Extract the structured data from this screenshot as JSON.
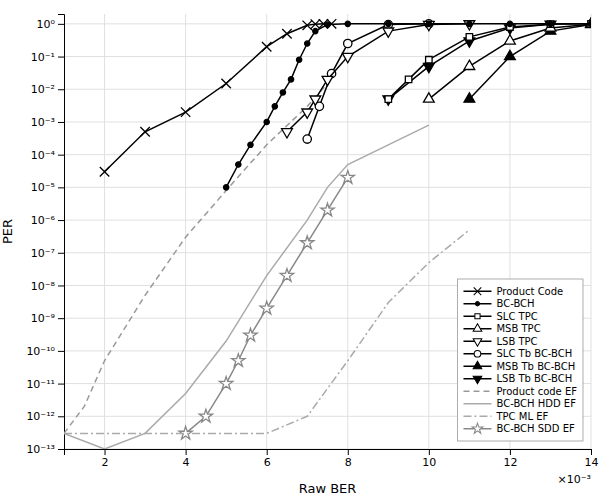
{
  "chart_data": {
    "type": "line",
    "xlabel": "Raw BER",
    "ylabel": "PER",
    "annotations": [
      "×10⁻³"
    ],
    "log": "y",
    "grid": true,
    "legend": "lower right",
    "xlim": [
      0.001,
      0.014
    ],
    "xticks": [
      {
        "value": 0.002,
        "label": "2"
      },
      {
        "value": 0.004,
        "label": "4"
      },
      {
        "value": 0.006,
        "label": "6"
      },
      {
        "value": 0.008,
        "label": "8"
      },
      {
        "value": 0.01,
        "label": "10"
      },
      {
        "value": 0.012,
        "label": "12"
      },
      {
        "value": 0.014,
        "label": "14"
      }
    ],
    "ylim": [
      1e-13,
      2.0
    ],
    "yticks": [
      {
        "value": 1e-13,
        "label": "10⁻¹³"
      },
      {
        "value": 1e-12,
        "label": "10⁻¹²"
      },
      {
        "value": 1e-11,
        "label": "10⁻¹¹"
      },
      {
        "value": 1e-10,
        "label": "10⁻¹⁰"
      },
      {
        "value": 1e-09,
        "label": "10⁻⁹"
      },
      {
        "value": 1e-08,
        "label": "10⁻⁸"
      },
      {
        "value": 1e-07,
        "label": "10⁻⁷"
      },
      {
        "value": 1e-06,
        "label": "10⁻⁶"
      },
      {
        "value": 1e-05,
        "label": "10⁻⁵"
      },
      {
        "value": 0.0001,
        "label": "10⁻⁴"
      },
      {
        "value": 0.001,
        "label": "10⁻³"
      },
      {
        "value": 0.01,
        "label": "10⁻²"
      },
      {
        "value": 0.1,
        "label": "10⁻¹"
      },
      {
        "value": 1,
        "label": "10⁰"
      }
    ],
    "series": [
      {
        "name": "Product Code",
        "color": "black",
        "marker": "x",
        "line_style": "solid",
        "x": [
          0.002,
          0.003,
          0.004,
          0.005,
          0.006,
          0.0065,
          0.007,
          0.0072,
          0.0074,
          0.0076
        ],
        "values": [
          3e-05,
          0.0005,
          0.002,
          0.015,
          0.2,
          0.5,
          0.9,
          0.98,
          1.0,
          1.0
        ]
      },
      {
        "name": "BC-BCH",
        "color": "black",
        "marker": "point",
        "line_style": "solid",
        "x": [
          0.005,
          0.0053,
          0.0056,
          0.006,
          0.0062,
          0.0064,
          0.0066,
          0.0068,
          0.007,
          0.0072,
          0.0075,
          0.008,
          0.009,
          0.01,
          0.011,
          0.012,
          0.013,
          0.014
        ],
        "values": [
          1e-05,
          5e-05,
          0.0002,
          0.001,
          0.003,
          0.008,
          0.02,
          0.08,
          0.25,
          0.6,
          0.95,
          1.0,
          1.0,
          1.0,
          1.0,
          1.0,
          1.0,
          1.0
        ]
      },
      {
        "name": "SLC TPC",
        "color": "black",
        "marker": "square-open",
        "line_style": "solid",
        "x": [
          0.009,
          0.0095,
          0.01,
          0.011,
          0.012,
          0.013,
          0.014
        ],
        "values": [
          0.005,
          0.02,
          0.08,
          0.4,
          0.8,
          0.98,
          1.0
        ]
      },
      {
        "name": "MSB TPC",
        "color": "black",
        "marker": "triangle-up-open",
        "line_style": "solid",
        "x": [
          0.01,
          0.011,
          0.012,
          0.013,
          0.014
        ],
        "values": [
          0.005,
          0.05,
          0.3,
          0.75,
          0.98
        ]
      },
      {
        "name": "LSB TPC",
        "color": "black",
        "marker": "triangle-down-open",
        "line_style": "solid",
        "x": [
          0.0065,
          0.007,
          0.0072,
          0.0075,
          0.008,
          0.009,
          0.01,
          0.011
        ],
        "values": [
          0.0005,
          0.002,
          0.005,
          0.02,
          0.1,
          0.6,
          0.95,
          1.0
        ]
      },
      {
        "name": "SLC Tb BC-BCH",
        "color": "black",
        "marker": "circle-open",
        "line_style": "solid",
        "x": [
          0.007,
          0.0073,
          0.0076,
          0.008,
          0.009,
          0.01
        ],
        "values": [
          0.0003,
          0.003,
          0.03,
          0.25,
          0.95,
          1.0
        ]
      },
      {
        "name": "MSB Tb BC-BCH",
        "color": "black",
        "marker": "triangle-up",
        "line_style": "solid",
        "x": [
          0.011,
          0.012,
          0.013,
          0.014
        ],
        "values": [
          0.005,
          0.1,
          0.6,
          0.95
        ]
      },
      {
        "name": "LSB Tb BC-BCH",
        "color": "black",
        "marker": "triangle-down",
        "line_style": "solid",
        "x": [
          0.009,
          0.01,
          0.011,
          0.012,
          0.013
        ],
        "values": [
          0.005,
          0.05,
          0.3,
          0.75,
          0.98
        ]
      },
      {
        "name": "Product code EF",
        "color": "#999999",
        "line_style": "dashed",
        "x": [
          0.001,
          0.0015,
          0.002,
          0.003,
          0.004,
          0.005,
          0.006,
          0.007,
          0.0075
        ],
        "values": [
          3e-13,
          2e-12,
          5e-11,
          5e-09,
          3e-07,
          8e-06,
          0.0002,
          0.003,
          0.015
        ]
      },
      {
        "name": "BC-BCH HDD EF",
        "color": "#aaaaaa",
        "line_style": "solid",
        "x": [
          0.001,
          0.002,
          0.003,
          0.004,
          0.005,
          0.006,
          0.007,
          0.0075,
          0.008,
          0.009,
          0.01
        ],
        "values": [
          3e-13,
          1e-13,
          3e-13,
          5e-12,
          2e-10,
          2e-08,
          1e-06,
          1e-05,
          5e-05,
          0.0002,
          0.0008
        ]
      },
      {
        "name": "TPC ML EF",
        "color": "#aaaaaa",
        "line_style": "dashdot",
        "x": [
          0.001,
          0.002,
          0.003,
          0.004,
          0.005,
          0.006,
          0.007,
          0.008,
          0.009,
          0.01,
          0.011
        ],
        "values": [
          3e-13,
          3e-13,
          3e-13,
          3e-13,
          3e-13,
          3e-13,
          1e-12,
          5e-11,
          3e-09,
          5e-08,
          5e-07
        ]
      },
      {
        "name": "BC-BCH SDD EF",
        "color": "#888888",
        "marker": "star-open",
        "line_style": "solid",
        "x": [
          0.004,
          0.0045,
          0.005,
          0.0053,
          0.0056,
          0.006,
          0.0065,
          0.007,
          0.0075,
          0.008
        ],
        "values": [
          3e-13,
          1e-12,
          1e-11,
          5e-11,
          3e-10,
          2e-09,
          2e-08,
          2e-07,
          2e-06,
          2e-05
        ]
      }
    ]
  }
}
